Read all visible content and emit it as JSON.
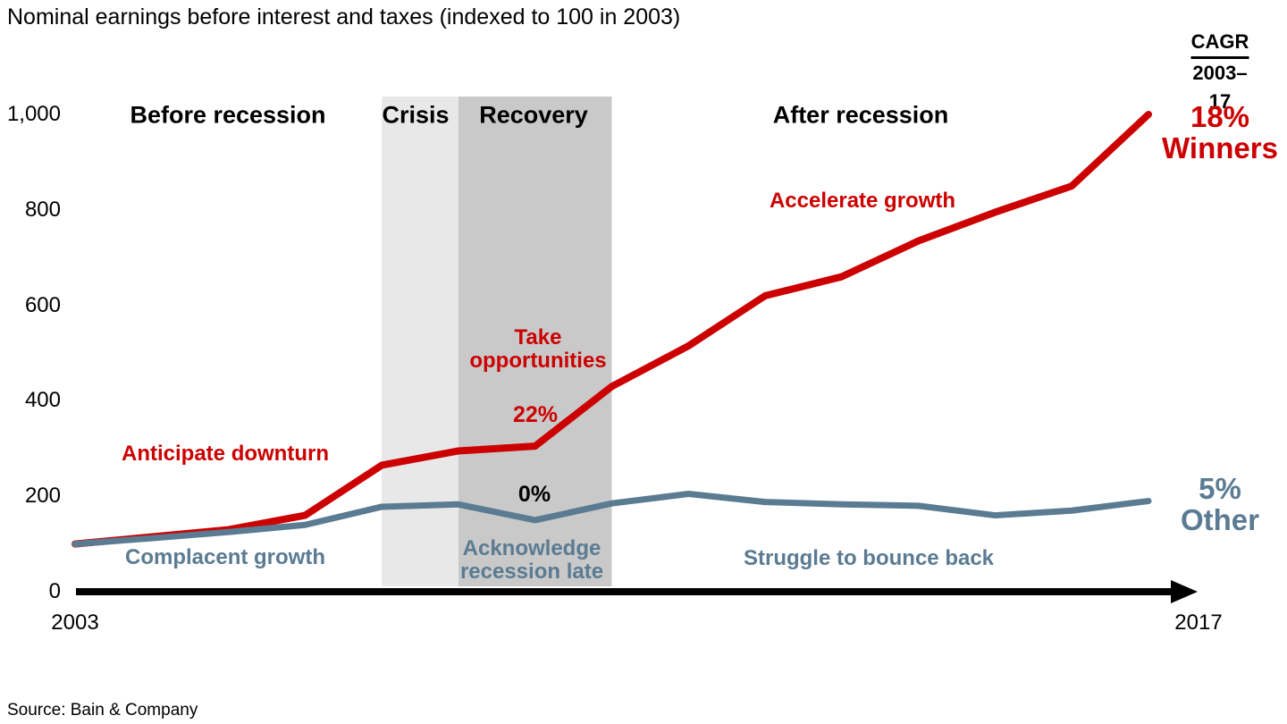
{
  "title": "Nominal earnings before interest and taxes (indexed to 100 in 2003)",
  "source": "Source: Bain & Company",
  "cagr": {
    "label": "CAGR",
    "period": "2003–17"
  },
  "legend": {
    "winners_pct": "18%",
    "winners_name": "Winners",
    "other_pct": "5%",
    "other_name": "Other"
  },
  "phases": {
    "before": "Before recession",
    "crisis": "Crisis",
    "recovery": "Recovery",
    "after": "After recession"
  },
  "annotations": {
    "anticipate": "Anticipate downturn",
    "complacent": "Complacent growth",
    "take_opportunities": "Take\nopportunities",
    "recovery_winners_pct": "22%",
    "recovery_other_pct": "0%",
    "acknowledge": "Acknowledge\nrecession late",
    "accelerate": "Accelerate growth",
    "struggle": "Struggle to bounce back"
  },
  "colors": {
    "winners": "#CC0000",
    "other": "#5A7B92",
    "crisis_band": "#E8E8E8",
    "recovery_band": "#C9C9C9",
    "axis": "#000000"
  },
  "chart_data": {
    "type": "line",
    "title": "Nominal earnings before interest and taxes (indexed to 100 in 2003)",
    "x": [
      2003,
      2004,
      2005,
      2006,
      2007,
      2008,
      2009,
      2010,
      2011,
      2012,
      2013,
      2014,
      2015,
      2016,
      2017
    ],
    "series": [
      {
        "name": "Winners",
        "color": "#CC0000",
        "cagr_2003_17": "18%",
        "values": [
          100,
          115,
          130,
          160,
          265,
          295,
          305,
          430,
          515,
          620,
          660,
          735,
          795,
          850,
          1000
        ]
      },
      {
        "name": "Other",
        "color": "#5A7B92",
        "cagr_2003_17": "5%",
        "values": [
          100,
          112,
          125,
          140,
          178,
          183,
          150,
          185,
          205,
          188,
          183,
          180,
          160,
          170,
          190
        ]
      }
    ],
    "ylim": [
      0,
      1000
    ],
    "yticks": [
      0,
      200,
      400,
      600,
      800,
      1000
    ],
    "xticks": [
      2003,
      2017
    ],
    "grid": false,
    "legend_position": "right",
    "bands": [
      {
        "label": "Crisis",
        "x_from": 2007,
        "x_to": 2008,
        "color": "#E8E8E8"
      },
      {
        "label": "Recovery",
        "x_from": 2008,
        "x_to": 2010,
        "color": "#C9C9C9"
      }
    ]
  }
}
